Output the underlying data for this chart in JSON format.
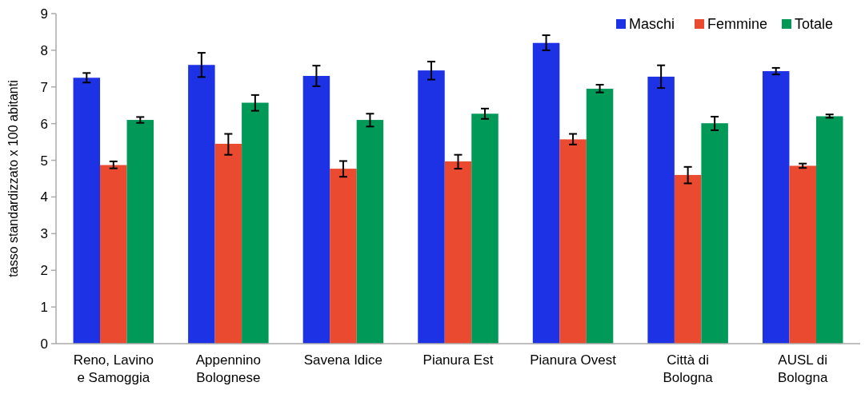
{
  "chart_data": {
    "type": "bar",
    "ylabel": "tasso standardizzato x 100 abitanti",
    "categories": [
      "Reno, Lavino e Samoggia",
      "Appennino Bolognese",
      "Savena Idice",
      "Pianura Est",
      "Pianura Ovest",
      "Città di Bologna",
      "AUSL di Bologna"
    ],
    "series": [
      {
        "name": "Maschi",
        "color": "#1c32e4",
        "values": [
          7.25,
          7.6,
          7.3,
          7.45,
          8.2,
          7.28,
          7.43
        ],
        "errors": [
          [
            7.12,
            7.38
          ],
          [
            7.27,
            7.93
          ],
          [
            7.02,
            7.58
          ],
          [
            7.2,
            7.69
          ],
          [
            8.0,
            8.41
          ],
          [
            6.97,
            7.59
          ],
          [
            7.34,
            7.52
          ]
        ]
      },
      {
        "name": "Femmine",
        "color": "#ea4a30",
        "values": [
          4.87,
          5.45,
          4.77,
          4.97,
          5.57,
          4.6,
          4.85
        ],
        "errors": [
          [
            4.78,
            4.97
          ],
          [
            5.15,
            5.72
          ],
          [
            4.55,
            4.98
          ],
          [
            4.77,
            5.15
          ],
          [
            5.43,
            5.72
          ],
          [
            4.37,
            4.82
          ],
          [
            4.79,
            4.91
          ]
        ]
      },
      {
        "name": "Totale",
        "color": "#009958",
        "values": [
          6.1,
          6.57,
          6.1,
          6.27,
          6.95,
          6.01,
          6.2
        ],
        "errors": [
          [
            6.02,
            6.18
          ],
          [
            6.35,
            6.78
          ],
          [
            5.92,
            6.27
          ],
          [
            6.13,
            6.41
          ],
          [
            6.85,
            7.06
          ],
          [
            5.82,
            6.19
          ],
          [
            6.16,
            6.25
          ]
        ]
      }
    ],
    "ylim": [
      0,
      9
    ],
    "yticks": [
      0,
      1,
      2,
      3,
      4,
      5,
      6,
      7,
      8,
      9
    ],
    "grid": false,
    "legend": "top right"
  }
}
